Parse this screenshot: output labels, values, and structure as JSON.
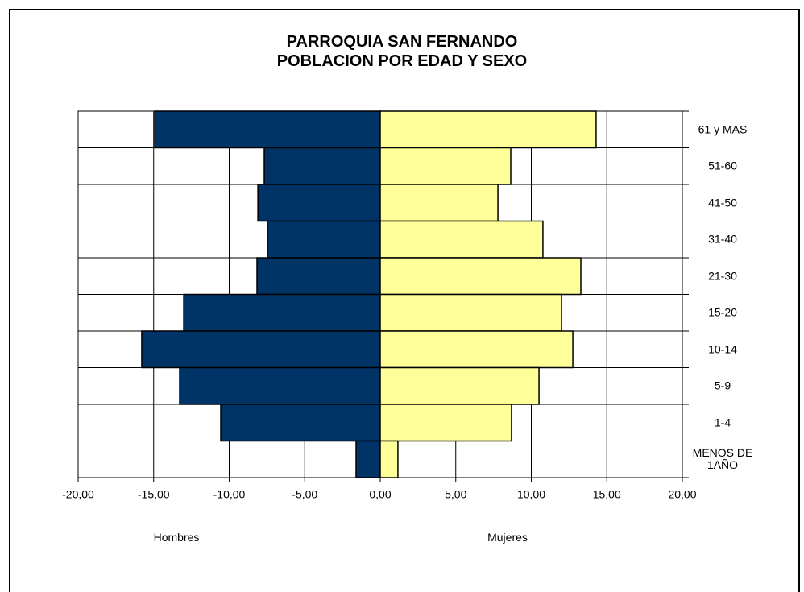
{
  "chart_data": {
    "type": "bar",
    "orientation": "horizontal",
    "title": "PARROQUIA SAN FERNANDO\nPOBLACION POR EDAD Y SEXO",
    "categories": [
      "61 y MAS",
      "51-60",
      "41-50",
      "31-40",
      "21-30",
      "15-20",
      "10-14",
      "5-9",
      "1-4",
      "MENOS DE\n1AÑO"
    ],
    "series": [
      {
        "name": "Hombres",
        "color": "#003366",
        "values": [
          -14.93,
          -7.68,
          -8.1,
          -7.47,
          -8.16,
          -13.01,
          -15.79,
          -13.28,
          -10.56,
          -1.6
        ]
      },
      {
        "name": "Mujeres",
        "color": "#ffff99",
        "values": [
          14.29,
          8.64,
          7.79,
          10.77,
          13.28,
          12.0,
          12.75,
          10.51,
          8.69,
          1.17
        ]
      }
    ],
    "xlim": [
      -20,
      20
    ],
    "xticks": [
      {
        "value": -20,
        "label": "-20,00"
      },
      {
        "value": -15,
        "label": "-15,00"
      },
      {
        "value": -10,
        "label": "-10,00"
      },
      {
        "value": -5,
        "label": "-5,00"
      },
      {
        "value": 0,
        "label": "0,00"
      },
      {
        "value": 5,
        "label": "5,00"
      },
      {
        "value": 10,
        "label": "10,00"
      },
      {
        "value": 15,
        "label": "15,00"
      },
      {
        "value": 20,
        "label": "20,00"
      }
    ],
    "grid": true
  }
}
